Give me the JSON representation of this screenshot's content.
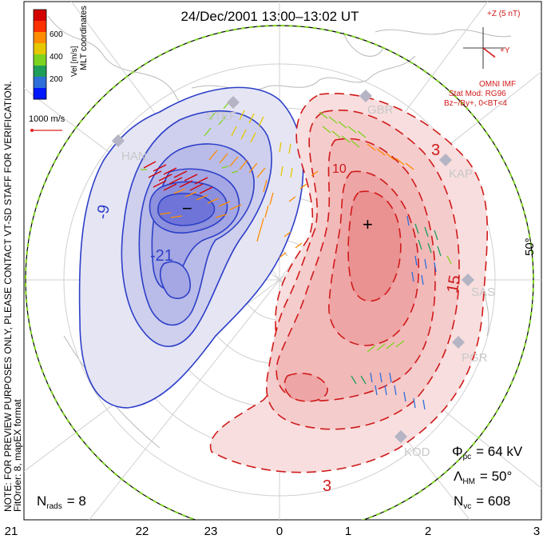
{
  "title": "24/Dec/2001 13:00–13:02 UT",
  "colorbar": {
    "label": "Vel [m/s]",
    "ticks": [
      "600",
      "400",
      "200"
    ],
    "colors": [
      "#d40000",
      "#ff3000",
      "#ff8c00",
      "#e6c800",
      "#7ed321",
      "#1f9e5a",
      "#2f6fd8",
      "#0018ff"
    ]
  },
  "coords_label": "MLT coordinates",
  "scale_vector_label": "1000 m/s",
  "imf": {
    "header": "+Z (5 nT)",
    "y_label": "+Y",
    "omni": "OMNI IMF",
    "model": "Stat Mod: RG96",
    "condition": "Bz−/By+, 0<BT<4"
  },
  "side_note": "NOTE: FOR PREVIEW PURPOSES ONLY, PLEASE CONTACT VT-SD STAFF FOR VERIFICATION.",
  "fit_order": "FitOrder: 8, mapEX format",
  "latitude_label": "50°",
  "stations": [
    "HAN",
    "STEF",
    "GBR",
    "KAP",
    "SAS",
    "PGR",
    "KOD"
  ],
  "contour_labels": [
    "-9",
    "-21",
    "3",
    "3",
    "10",
    "15"
  ],
  "extrema_marks": [
    "−",
    "+"
  ],
  "stats": {
    "nrads_label": "N",
    "nrads_sub": "rads",
    "nrads_value": "= 8",
    "phi_label": "Φ",
    "phi_sub": "pc",
    "phi_value": "= 64 kV",
    "lambda_label": "Λ",
    "lambda_sub": "HM",
    "lambda_value": "= 50°",
    "nvc_label": "N",
    "nvc_sub": "vc",
    "nvc_value": "= 608"
  },
  "mlt_axis": [
    "21",
    "22",
    "23",
    "0",
    "1",
    "2",
    "3"
  ]
}
